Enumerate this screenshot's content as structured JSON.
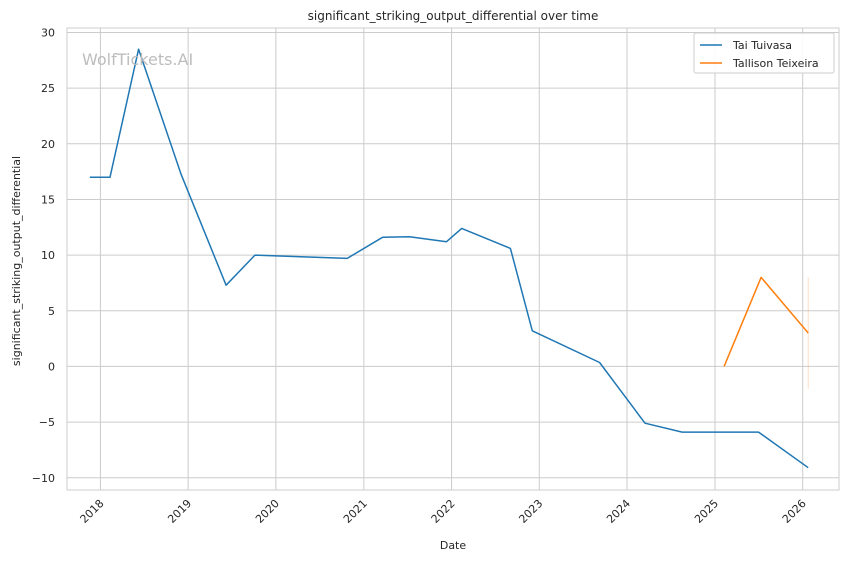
{
  "chart_data": {
    "type": "line",
    "title": "significant_striking_output_differential over time",
    "xlabel": "Date",
    "ylabel": "significant_striking_output_differential",
    "watermark": "WolfTickets.AI",
    "x_ticks": [
      "2018",
      "2019",
      "2020",
      "2021",
      "2022",
      "2023",
      "2024",
      "2025",
      "2026"
    ],
    "y_ticks": [
      -10,
      -5,
      0,
      5,
      10,
      15,
      20,
      25,
      30
    ],
    "xlim": [
      "2017-08-15",
      "2026-06-01"
    ],
    "ylim": [
      -11.1,
      30.4
    ],
    "grid": true,
    "legend_position": "top-right",
    "series": [
      {
        "name": "Tai Tuivasa",
        "color": "#1f77b4",
        "points": [
          {
            "x": "2017-11-18",
            "y": 17.0
          },
          {
            "x": "2018-02-10",
            "y": 17.0
          },
          {
            "x": "2018-06-09",
            "y": 28.5
          },
          {
            "x": "2018-12-02",
            "y": 17.3
          },
          {
            "x": "2019-06-08",
            "y": 7.3
          },
          {
            "x": "2019-10-06",
            "y": 10.0
          },
          {
            "x": "2020-10-24",
            "y": 9.7
          },
          {
            "x": "2021-03-20",
            "y": 11.6
          },
          {
            "x": "2021-07-10",
            "y": 11.65
          },
          {
            "x": "2021-12-11",
            "y": 11.2
          },
          {
            "x": "2022-02-12",
            "y": 12.4
          },
          {
            "x": "2022-09-03",
            "y": 10.6
          },
          {
            "x": "2022-12-03",
            "y": 3.2
          },
          {
            "x": "2023-09-09",
            "y": 0.35
          },
          {
            "x": "2024-03-16",
            "y": -5.1
          },
          {
            "x": "2024-08-17",
            "y": -5.9
          },
          {
            "x": "2025-07-01",
            "y": -5.9
          },
          {
            "x": "2026-01-24",
            "y": -9.1
          }
        ]
      },
      {
        "name": "Tallison Teixeira",
        "color": "#ff7f0e",
        "points": [
          {
            "x": "2025-02-08",
            "y": 0.0
          },
          {
            "x": "2025-07-12",
            "y": 8.0
          },
          {
            "x": "2026-01-24",
            "y": 3.0
          }
        ],
        "error_bar": {
          "x": "2026-01-24",
          "low": -2.0,
          "high": 8.0
        }
      }
    ]
  }
}
